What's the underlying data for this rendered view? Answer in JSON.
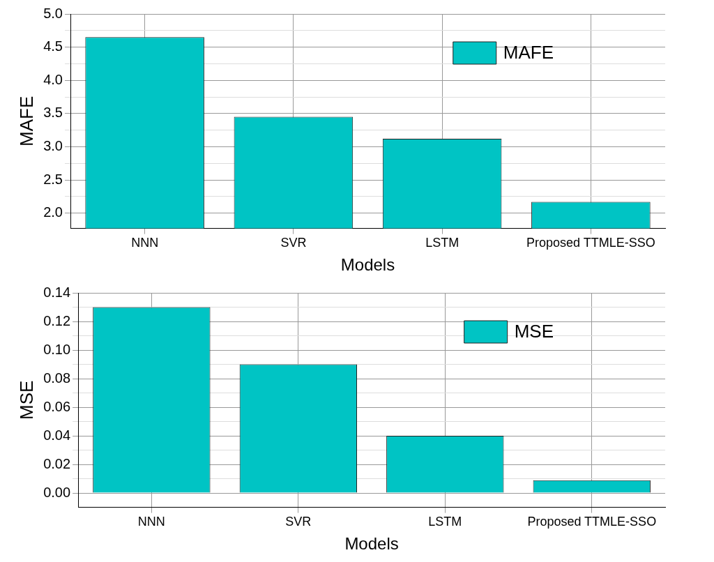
{
  "chart_data": [
    {
      "type": "bar",
      "categories": [
        "NNN",
        "SVR",
        "LSTM",
        "Proposed TTMLE-SSO"
      ],
      "xlabel": "Models",
      "ylabel": "MAFE",
      "series": [
        {
          "name": "MAFE",
          "color": "#00c4c4",
          "values": [
            4.65,
            3.45,
            3.12,
            2.17
          ]
        }
      ],
      "ylim": [
        1.77,
        5.0
      ],
      "yticks": [
        {
          "value": 2.0,
          "label": "2.0"
        },
        {
          "value": 2.25,
          "label": null
        },
        {
          "value": 2.5,
          "label": "2.5"
        },
        {
          "value": 2.75,
          "label": null
        },
        {
          "value": 3.0,
          "label": "3.0"
        },
        {
          "value": 3.25,
          "label": null
        },
        {
          "value": 3.5,
          "label": "3.5"
        },
        {
          "value": 3.75,
          "label": null
        },
        {
          "value": 4.0,
          "label": "4.0"
        },
        {
          "value": 4.25,
          "label": null
        },
        {
          "value": 4.5,
          "label": "4.5"
        },
        {
          "value": 4.75,
          "label": null
        },
        {
          "value": 5.0,
          "label": "5.0"
        }
      ],
      "grid": true,
      "legend": "top right"
    },
    {
      "type": "bar",
      "categories": [
        "NNN",
        "SVR",
        "LSTM",
        "Proposed TTMLE-SSO"
      ],
      "xlabel": "Models",
      "ylabel": "MSE",
      "series": [
        {
          "name": "MSE",
          "color": "#00c4c4",
          "values": [
            0.13,
            0.09,
            0.04,
            0.009
          ]
        }
      ],
      "ylim": [
        -0.01,
        0.14
      ],
      "yticks": [
        {
          "value": 0.0,
          "label": "0.00"
        },
        {
          "value": 0.01,
          "label": null
        },
        {
          "value": 0.02,
          "label": "0.02"
        },
        {
          "value": 0.03,
          "label": null
        },
        {
          "value": 0.04,
          "label": "0.04"
        },
        {
          "value": 0.05,
          "label": null
        },
        {
          "value": 0.06,
          "label": "0.06"
        },
        {
          "value": 0.07,
          "label": null
        },
        {
          "value": 0.08,
          "label": "0.08"
        },
        {
          "value": 0.09,
          "label": null
        },
        {
          "value": 0.1,
          "label": "0.10"
        },
        {
          "value": 0.11,
          "label": null
        },
        {
          "value": 0.12,
          "label": "0.12"
        },
        {
          "value": 0.13,
          "label": null
        },
        {
          "value": 0.14,
          "label": "0.14"
        }
      ],
      "grid": true,
      "legend": "top right"
    }
  ]
}
